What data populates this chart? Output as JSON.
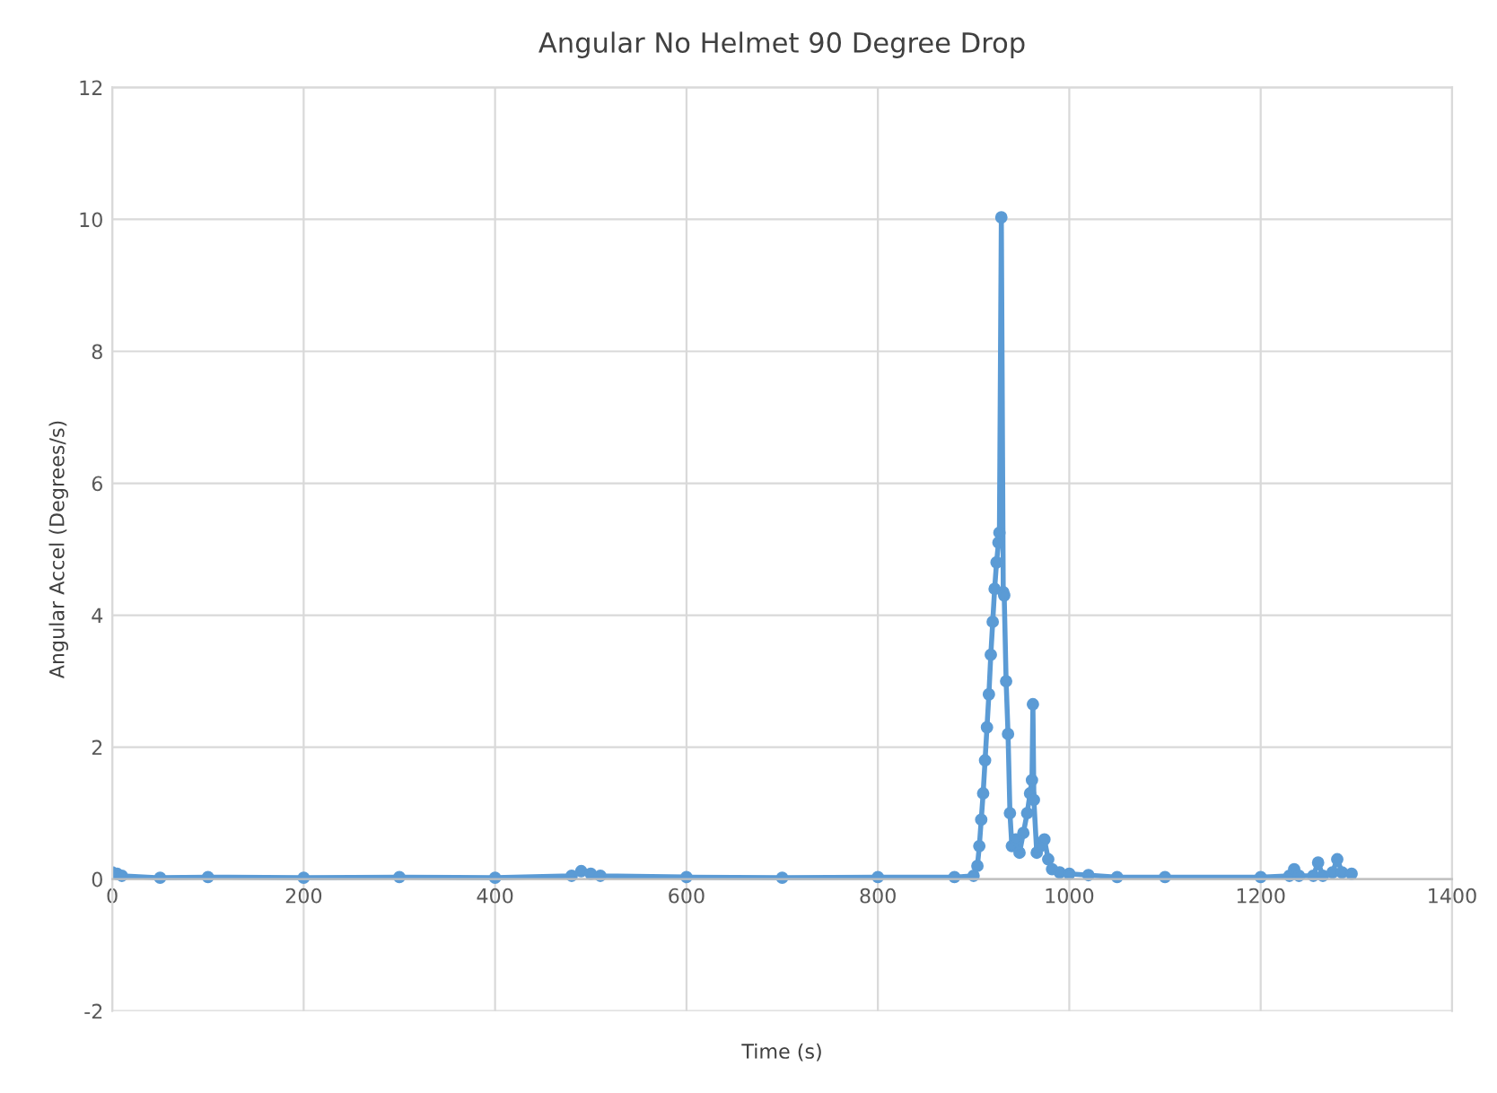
{
  "chart_data": {
    "type": "line",
    "title": "Angular No Helmet 90 Degree Drop",
    "xlabel": "Time (s)",
    "ylabel": "Angular Accel (Degrees/s)",
    "series": [
      {
        "color": "#5b9bd5",
        "x": [
          0,
          5,
          10,
          50,
          100,
          200,
          300,
          400,
          480,
          490,
          500,
          510,
          600,
          700,
          800,
          880,
          900,
          904,
          906,
          908,
          910,
          912,
          914,
          916,
          918,
          920,
          922,
          924,
          926,
          927,
          929,
          931,
          932,
          934,
          936,
          938,
          940,
          944,
          948,
          952,
          956,
          959,
          961,
          962,
          963,
          966,
          970,
          974,
          978,
          982,
          990,
          1000,
          1020,
          1050,
          1100,
          1200,
          1230,
          1235,
          1240,
          1255,
          1260,
          1265,
          1275,
          1280,
          1285,
          1295
        ],
        "values": [
          0.1,
          0.08,
          0.05,
          0.02,
          0.03,
          0.02,
          0.03,
          0.02,
          0.05,
          0.12,
          0.08,
          0.05,
          0.03,
          0.02,
          0.03,
          0.03,
          0.05,
          0.2,
          0.5,
          0.9,
          1.3,
          1.8,
          2.3,
          2.8,
          3.4,
          3.9,
          4.4,
          4.8,
          5.1,
          5.25,
          10.03,
          4.35,
          4.3,
          3.0,
          2.2,
          1.0,
          0.5,
          0.6,
          0.4,
          0.7,
          1.0,
          1.3,
          1.5,
          2.65,
          1.2,
          0.4,
          0.5,
          0.6,
          0.3,
          0.15,
          0.1,
          0.08,
          0.06,
          0.03,
          0.03,
          0.03,
          0.05,
          0.15,
          0.05,
          0.05,
          0.25,
          0.05,
          0.1,
          0.3,
          0.1,
          0.08
        ]
      }
    ],
    "xlim": [
      0,
      1400
    ],
    "xticks": [
      0,
      200,
      400,
      600,
      800,
      1000,
      1200,
      1400
    ],
    "ylim": [
      -2,
      12
    ],
    "yticks": [
      -2,
      0,
      2,
      4,
      6,
      8,
      10,
      12
    ],
    "grid": true,
    "marker": "circle",
    "line_style": "solid",
    "legend": false
  }
}
